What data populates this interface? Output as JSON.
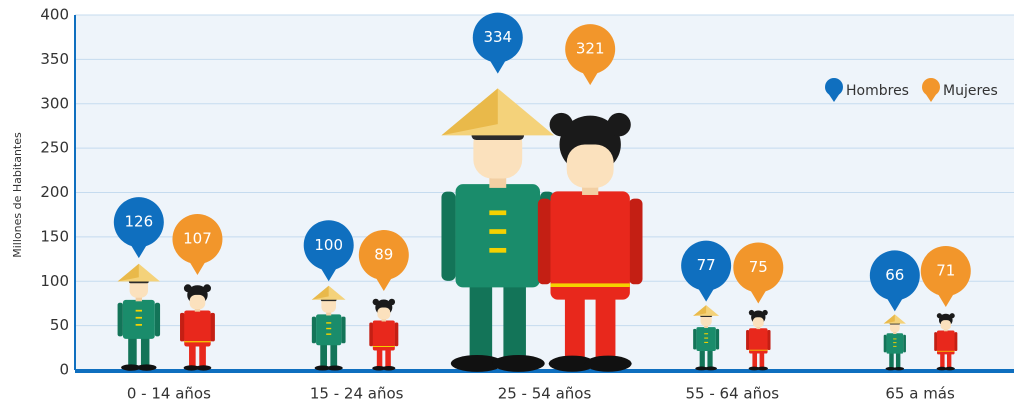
{
  "chart_data": {
    "type": "pictograph",
    "y_label": "Millones de Habitantes",
    "categories": [
      "0 - 14 años",
      "15 - 24 años",
      "25 - 54 años",
      "55 - 64 años",
      "65 a más"
    ],
    "series": [
      {
        "name": "Hombres",
        "color": "#0f6fbf",
        "values": [
          126,
          100,
          334,
          77,
          66
        ]
      },
      {
        "name": "Mujeres",
        "color": "#f2962b",
        "values": [
          107,
          89,
          321,
          75,
          71
        ]
      }
    ],
    "ylim": [
      0,
      400
    ],
    "yticks": [
      0,
      50,
      100,
      150,
      200,
      250,
      300,
      350,
      400
    ],
    "grid": true,
    "legend": "upper right"
  }
}
